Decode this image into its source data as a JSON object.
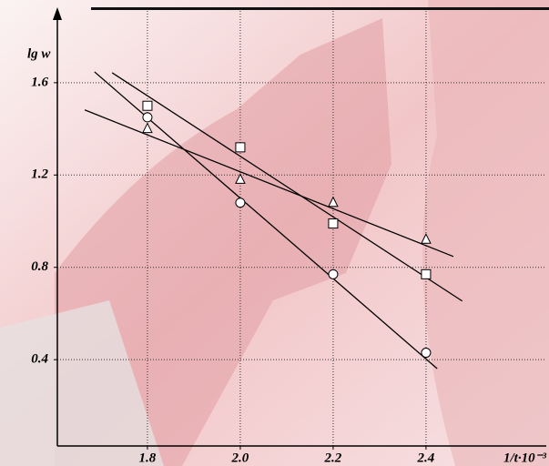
{
  "chart_data": {
    "type": "scatter",
    "y_label": "lg w",
    "x_label": "1/t·10⁻³",
    "xlim": [
      1.606,
      2.659
    ],
    "ylim": [
      0.026,
      1.911
    ],
    "xticks": [
      1.8,
      {
        "value": 2.0,
        "label": "2.0"
      },
      2.2,
      2.4
    ],
    "yticks": [
      0.4,
      0.8,
      1.2,
      1.6
    ],
    "grid": true,
    "series": [
      {
        "marker": "square",
        "color": "#ffffff",
        "x": [
          1.8,
          2.0,
          2.2,
          2.4
        ],
        "values": [
          1.5,
          1.32,
          0.99,
          0.77
        ],
        "fit": {
          "x": [
            1.724,
            2.478
          ],
          "values": [
            1.643,
            0.654
          ]
        }
      },
      {
        "marker": "circle",
        "color": "#ffffff",
        "x": [
          1.8,
          2.0,
          2.2,
          2.4
        ],
        "values": [
          1.45,
          1.08,
          0.77,
          0.43
        ],
        "fit": {
          "x": [
            1.686,
            2.424
          ],
          "values": [
            1.647,
            0.361
          ]
        }
      },
      {
        "marker": "triangle",
        "color": "#ffffff",
        "x": [
          1.8,
          2.0,
          2.2,
          2.4
        ],
        "values": [
          1.4,
          1.18,
          1.08,
          0.92
        ],
        "fit": {
          "x": [
            1.665,
            2.459
          ],
          "values": [
            1.482,
            0.847
          ]
        }
      }
    ]
  }
}
